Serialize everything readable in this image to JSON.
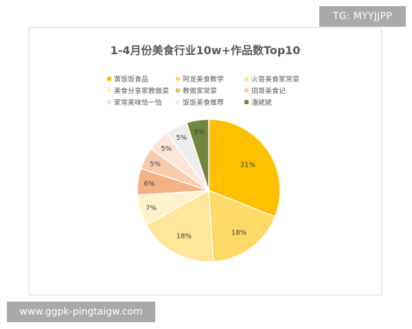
{
  "badge": {
    "text": "TG: MYYJJPP"
  },
  "watermark": {
    "text": "www.ggpk-pingtaigw.com"
  },
  "chart_data": {
    "type": "pie",
    "title": "1-4月份美食行业10w+作品数Top10",
    "legend_position": "top",
    "categories": [
      "黄饭饭食品",
      "阿龙美食教学",
      "火哥美食家常菜",
      "美食分享家教做菜",
      "教做家常菜",
      "田哥美食记",
      "家常美味恰一恰",
      "饭饭美食推荐",
      "潘姥姥"
    ],
    "values": [
      31,
      18,
      18,
      7,
      6,
      5,
      5,
      5,
      5
    ],
    "labels": [
      "31%",
      "18%",
      "18%",
      "7%",
      "6%",
      "5%",
      "5%",
      "5%",
      "5%"
    ],
    "colors": [
      "#ffc000",
      "#ffd966",
      "#ffe699",
      "#fff2cc",
      "#f4b183",
      "#f8cbad",
      "#fbe5d6",
      "#ededed",
      "#70873d"
    ]
  }
}
